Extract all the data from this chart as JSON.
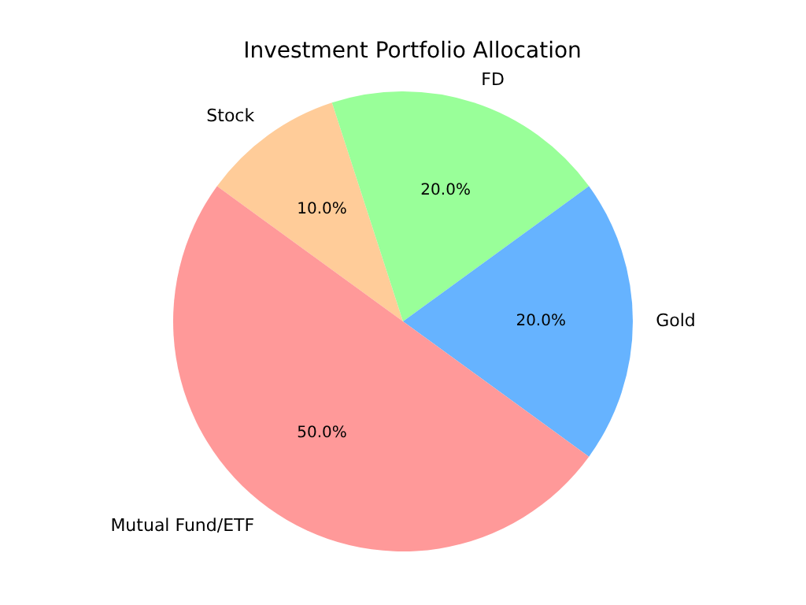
{
  "chart_data": {
    "type": "pie",
    "title": "Investment Portfolio Allocation",
    "categories": [
      "Stock",
      "FD",
      "Gold",
      "Mutual Fund/ETF"
    ],
    "values": [
      10,
      20,
      20,
      50
    ],
    "colors": [
      "#ffcc99",
      "#99ff99",
      "#66b3ff",
      "#ff9999"
    ],
    "value_labels": [
      "10.0%",
      "20.0%",
      "20.0%",
      "50.0%"
    ],
    "legend": false
  }
}
